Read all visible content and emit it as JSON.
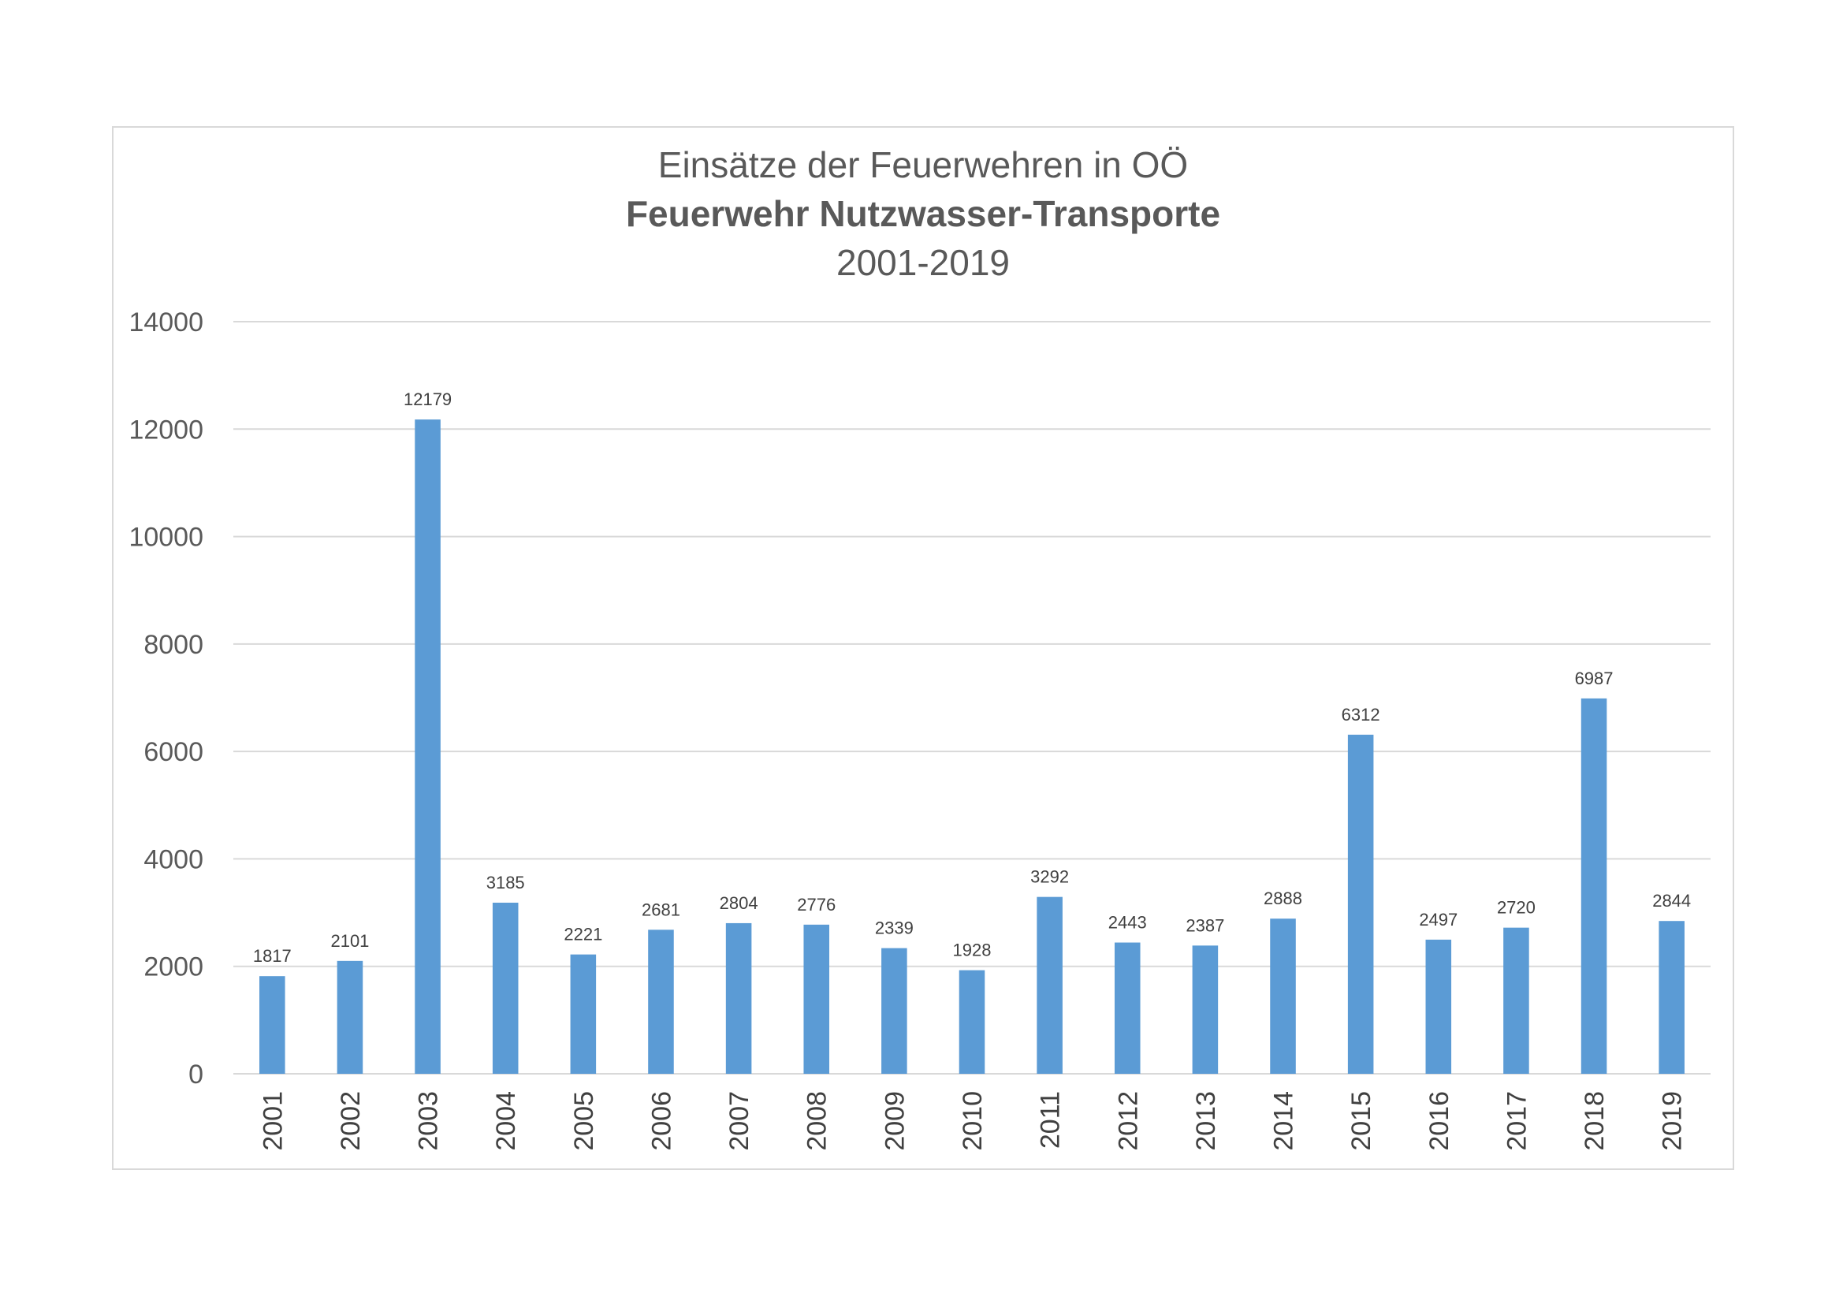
{
  "chart_data": {
    "type": "bar",
    "title": "Einsätze der Feuerwehren in OÖ",
    "subtitle": "Feuerwehr Nutzwasser-Transporte",
    "subtitle2": "2001-2019",
    "xlabel": "",
    "ylabel": "",
    "ylim": [
      0,
      14000
    ],
    "yticks": [
      0,
      2000,
      4000,
      6000,
      8000,
      10000,
      12000,
      14000
    ],
    "grid": true,
    "legend": "none",
    "bar_color": "#5b9bd5",
    "categories": [
      "2001",
      "2002",
      "2003",
      "2004",
      "2005",
      "2006",
      "2007",
      "2008",
      "2009",
      "2010",
      "2011",
      "2012",
      "2013",
      "2014",
      "2015",
      "2016",
      "2017",
      "2018",
      "2019"
    ],
    "values": [
      1817,
      2101,
      12179,
      3185,
      2221,
      2681,
      2804,
      2776,
      2339,
      1928,
      3292,
      2443,
      2387,
      2888,
      6312,
      2497,
      2720,
      6987,
      2844
    ],
    "data_labels": true
  }
}
